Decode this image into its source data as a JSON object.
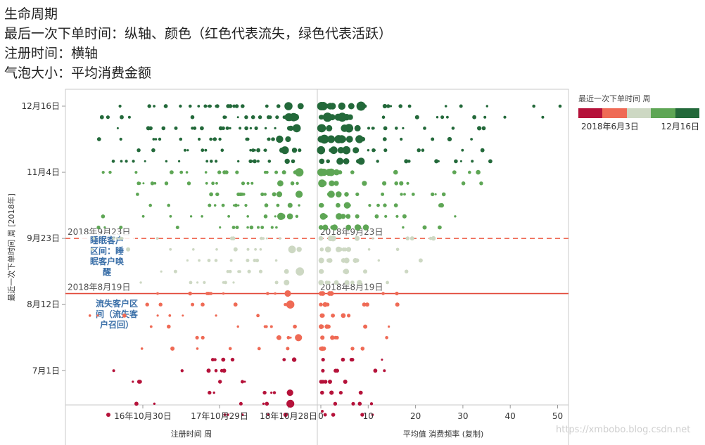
{
  "notes": [
    "生命周期",
    "最后一次下单时间：纵轴、颜色（红色代表流失，绿色代表活跃）",
    "注册时间：横轴",
    "气泡大小：平均消费金额"
  ],
  "legend": {
    "title": "最近一次下单时间 周",
    "min_label": "2018年6月3日",
    "max_label": "12月16日",
    "colors": [
      "#b5123a",
      "#ef6a55",
      "#cdd8c3",
      "#5ea655",
      "#23693a"
    ]
  },
  "watermark": "https://xmbobo.blog.csdn.net",
  "chart_data": {
    "type": "scatter",
    "y_axis": {
      "label": "最近一次下单时间 周 [2018年]",
      "ticks": [
        "12月16日",
        "11月4日",
        "9月23日",
        "8月12日",
        "7月1日"
      ],
      "range": [
        "2018-06-03",
        "2018-12-16"
      ]
    },
    "panels": [
      {
        "name": "left",
        "xlabel": "注册时间 周",
        "x_ticks": [
          "16年10月30日",
          "17年10月29日",
          "18年10月28日"
        ]
      },
      {
        "name": "right",
        "xlabel": "平均值 消费频率 (复制)",
        "x_ticks": [
          "0",
          "10",
          "20",
          "30",
          "40",
          "50"
        ],
        "xlim": [
          0,
          52
        ]
      }
    ],
    "reference_lines": [
      {
        "label": "2018年9月23日",
        "date": "2018-09-23",
        "style": "dashed",
        "color": "#ef6a55"
      },
      {
        "label": "2018年8月19日",
        "date": "2018-08-19",
        "style": "solid",
        "color": "#e24a3b"
      }
    ],
    "annotations": [
      {
        "text": [
          "睡眠客户",
          "区间：睡",
          "眠客户唤",
          "醒"
        ]
      },
      {
        "text": [
          "流失客户区",
          "间（流失客",
          "户召回）"
        ]
      }
    ],
    "color_encoding": "最后一次下单时间",
    "size_encoding": "平均消费金额"
  }
}
